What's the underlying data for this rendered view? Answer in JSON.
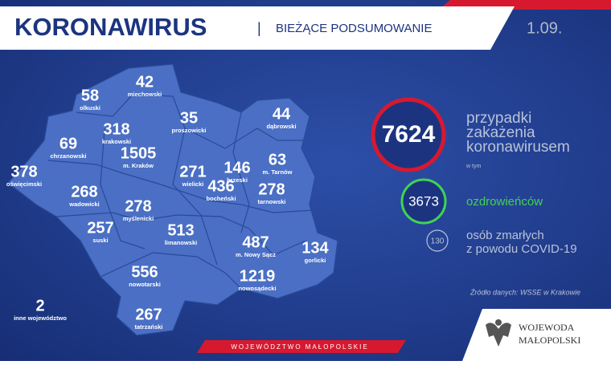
{
  "header": {
    "title": "KORONAWIRUS",
    "separator": "|",
    "subtitle": "BIEŻĄCE PODSUMOWANIE",
    "date": "1.09."
  },
  "map": {
    "regions": [
      {
        "value": 58,
        "label": "olkuski"
      },
      {
        "value": 42,
        "label": "miechowski"
      },
      {
        "value": 318,
        "label": "krakowski"
      },
      {
        "value": 35,
        "label": "proszowicki"
      },
      {
        "value": 44,
        "label": "dąbrowski"
      },
      {
        "value": 69,
        "label": "chrzanowski"
      },
      {
        "value": 1505,
        "label": "m. Kraków"
      },
      {
        "value": 271,
        "label": "wielicki"
      },
      {
        "value": 146,
        "label": "brzeski"
      },
      {
        "value": 63,
        "label": "m. Tarnów"
      },
      {
        "value": 378,
        "label": "oświęcimski"
      },
      {
        "value": 268,
        "label": "wadowicki"
      },
      {
        "value": 436,
        "label": "bocheński"
      },
      {
        "value": 278,
        "label": "tarnowski"
      },
      {
        "value": 278,
        "label": "myślenicki"
      },
      {
        "value": 257,
        "label": "suski"
      },
      {
        "value": 513,
        "label": "limanowski"
      },
      {
        "value": 487,
        "label": "m. Nowy Sącz"
      },
      {
        "value": 134,
        "label": "gorlicki"
      },
      {
        "value": 556,
        "label": "nowotarski"
      },
      {
        "value": 1219,
        "label": "nowosądecki"
      },
      {
        "value": 2,
        "label": "inne województwo"
      },
      {
        "value": 267,
        "label": "tatrzański"
      }
    ]
  },
  "stats": {
    "cases": {
      "value": 7624,
      "lines": [
        "przypadki",
        "zakażenia",
        "koronawirusem"
      ]
    },
    "of_which": "w tym",
    "recovered": {
      "value": 3673,
      "label": "ozdrowieńców"
    },
    "deaths": {
      "value": 130,
      "lines": [
        "osób zmarłych",
        "z powodu COVID-19"
      ]
    }
  },
  "source": "Źródło danych: WSSE w Krakowie",
  "footer": {
    "region": "WOJEWÓDZTWO MAŁOPOLSKIE",
    "logo_lines": [
      "WOJEWODA",
      "MAŁOPOLSKI"
    ]
  }
}
